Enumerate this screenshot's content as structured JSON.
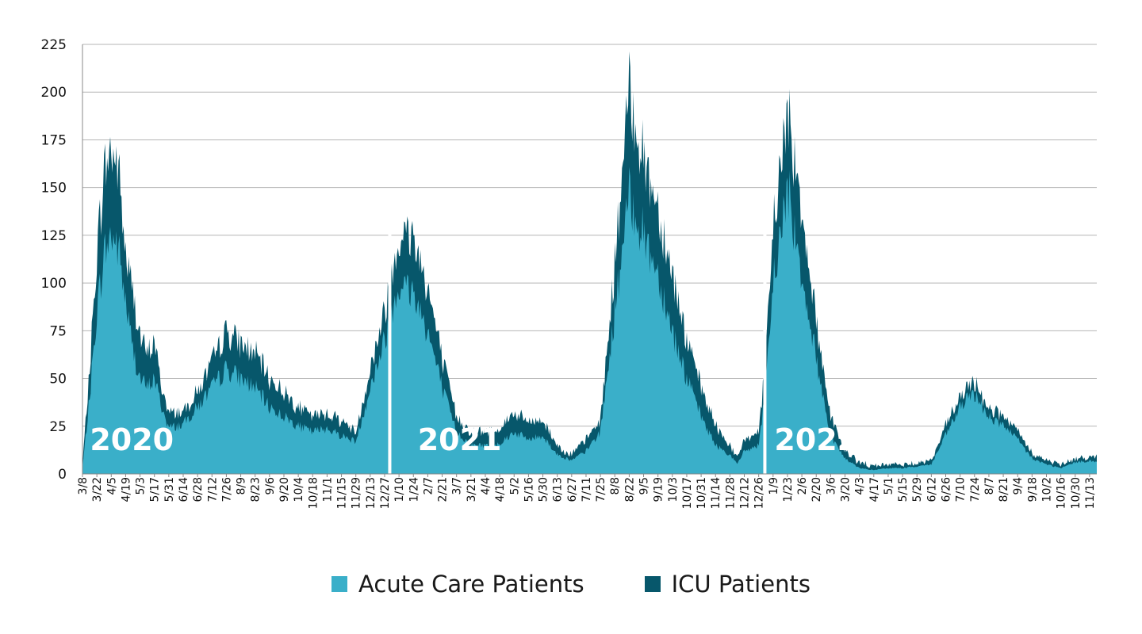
{
  "chart_data": {
    "type": "area",
    "stacked": true,
    "ylim": [
      0,
      225
    ],
    "yticks": [
      0,
      25,
      50,
      75,
      100,
      125,
      150,
      175,
      200,
      225
    ],
    "grid": true,
    "legend_position": "bottom-center",
    "colors": {
      "acute": "#3aafc9",
      "icu": "#07576b",
      "grid": "#b5b5b5",
      "axis": "#888888",
      "year_text": "#ffffff"
    },
    "x_tick_labels": [
      [
        "3/8",
        "3/22",
        "4/5",
        "4/19",
        "5/3",
        "5/17",
        "5/31",
        "6/14",
        "6/28",
        "7/12",
        "7/26",
        "8/9",
        "8/23",
        "9/6",
        "9/20",
        "10/4",
        "10/18",
        "11/1",
        "11/15",
        "11/29",
        "12/13",
        "12/27"
      ],
      [
        "1/10",
        "1/24",
        "2/7",
        "2/21",
        "3/7",
        "3/21",
        "4/4",
        "4/18",
        "5/2",
        "5/16",
        "5/30",
        "6/13",
        "6/27",
        "7/11",
        "7/25",
        "8/8",
        "8/22",
        "9/5",
        "9/19",
        "10/3",
        "10/17",
        "10/31",
        "11/14",
        "11/28",
        "12/12",
        "12/26"
      ],
      [
        "1/9",
        "1/23",
        "2/6",
        "2/20",
        "3/6",
        "3/20",
        "4/3",
        "4/17",
        "5/1",
        "5/15",
        "5/29",
        "6/12",
        "6/26",
        "7/10",
        "7/24",
        "8/7",
        "8/21",
        "9/4",
        "9/18",
        "10/2",
        "10/16",
        "10/30",
        "11/13"
      ]
    ],
    "year_labels": [
      "2020",
      "2021",
      "2022"
    ],
    "series": [
      {
        "name": "Acute Care Patients",
        "color": "#3aafc9"
      },
      {
        "name": "ICU Patients",
        "color": "#07576b"
      }
    ],
    "keypoints": [
      {
        "date": "2020-03-08",
        "acute": 3,
        "total": 5
      },
      {
        "date": "2020-03-15",
        "acute": 40,
        "total": 55
      },
      {
        "date": "2020-03-22",
        "acute": 85,
        "total": 115
      },
      {
        "date": "2020-03-29",
        "acute": 115,
        "total": 158
      },
      {
        "date": "2020-04-05",
        "acute": 125,
        "total": 170
      },
      {
        "date": "2020-04-12",
        "acute": 118,
        "total": 160
      },
      {
        "date": "2020-04-19",
        "acute": 90,
        "total": 115
      },
      {
        "date": "2020-04-26",
        "acute": 65,
        "total": 95
      },
      {
        "date": "2020-05-03",
        "acute": 50,
        "total": 72
      },
      {
        "date": "2020-05-10",
        "acute": 45,
        "total": 62
      },
      {
        "date": "2020-05-17",
        "acute": 50,
        "total": 70
      },
      {
        "date": "2020-05-24",
        "acute": 35,
        "total": 45
      },
      {
        "date": "2020-05-31",
        "acute": 24,
        "total": 32
      },
      {
        "date": "2020-06-14",
        "acute": 26,
        "total": 33
      },
      {
        "date": "2020-06-28",
        "acute": 35,
        "total": 43
      },
      {
        "date": "2020-07-12",
        "acute": 45,
        "total": 58
      },
      {
        "date": "2020-07-26",
        "acute": 55,
        "total": 75
      },
      {
        "date": "2020-08-09",
        "acute": 50,
        "total": 68
      },
      {
        "date": "2020-08-23",
        "acute": 45,
        "total": 63
      },
      {
        "date": "2020-09-06",
        "acute": 35,
        "total": 50
      },
      {
        "date": "2020-09-20",
        "acute": 30,
        "total": 43
      },
      {
        "date": "2020-10-04",
        "acute": 25,
        "total": 35
      },
      {
        "date": "2020-10-18",
        "acute": 22,
        "total": 30
      },
      {
        "date": "2020-11-01",
        "acute": 24,
        "total": 32
      },
      {
        "date": "2020-11-15",
        "acute": 20,
        "total": 28
      },
      {
        "date": "2020-11-29",
        "acute": 17,
        "total": 22
      },
      {
        "date": "2020-12-13",
        "acute": 45,
        "total": 55
      },
      {
        "date": "2020-12-27",
        "acute": 70,
        "total": 85
      },
      {
        "date": "2021-01-02",
        "acute": 85,
        "total": 105
      },
      {
        "date": "2021-01-10",
        "acute": 100,
        "total": 125
      },
      {
        "date": "2021-01-24",
        "acute": 95,
        "total": 125
      },
      {
        "date": "2021-02-07",
        "acute": 75,
        "total": 98
      },
      {
        "date": "2021-02-21",
        "acute": 45,
        "total": 60
      },
      {
        "date": "2021-03-07",
        "acute": 22,
        "total": 30
      },
      {
        "date": "2021-03-21",
        "acute": 15,
        "total": 22
      },
      {
        "date": "2021-04-04",
        "acute": 15,
        "total": 22
      },
      {
        "date": "2021-04-18",
        "acute": 16,
        "total": 24
      },
      {
        "date": "2021-05-02",
        "acute": 22,
        "total": 32
      },
      {
        "date": "2021-05-16",
        "acute": 18,
        "total": 27
      },
      {
        "date": "2021-05-30",
        "acute": 20,
        "total": 28
      },
      {
        "date": "2021-06-13",
        "acute": 10,
        "total": 15
      },
      {
        "date": "2021-06-27",
        "acute": 7,
        "total": 10
      },
      {
        "date": "2021-07-11",
        "acute": 12,
        "total": 18
      },
      {
        "date": "2021-07-25",
        "acute": 22,
        "total": 28
      },
      {
        "date": "2021-08-08",
        "acute": 85,
        "total": 110
      },
      {
        "date": "2021-08-22",
        "acute": 145,
        "total": 200
      },
      {
        "date": "2021-09-05",
        "acute": 125,
        "total": 165
      },
      {
        "date": "2021-09-19",
        "acute": 105,
        "total": 140
      },
      {
        "date": "2021-10-03",
        "acute": 75,
        "total": 105
      },
      {
        "date": "2021-10-17",
        "acute": 50,
        "total": 70
      },
      {
        "date": "2021-10-31",
        "acute": 30,
        "total": 45
      },
      {
        "date": "2021-11-14",
        "acute": 15,
        "total": 25
      },
      {
        "date": "2021-11-28",
        "acute": 10,
        "total": 15
      },
      {
        "date": "2021-12-05",
        "acute": 5,
        "total": 8
      },
      {
        "date": "2021-12-12",
        "acute": 12,
        "total": 18
      },
      {
        "date": "2021-12-26",
        "acute": 15,
        "total": 22
      },
      {
        "date": "2022-01-02",
        "acute": 45,
        "total": 60
      },
      {
        "date": "2022-01-09",
        "acute": 100,
        "total": 130
      },
      {
        "date": "2022-01-23",
        "acute": 150,
        "total": 190
      },
      {
        "date": "2022-02-06",
        "acute": 105,
        "total": 140
      },
      {
        "date": "2022-02-20",
        "acute": 60,
        "total": 80
      },
      {
        "date": "2022-03-06",
        "acute": 20,
        "total": 30
      },
      {
        "date": "2022-03-20",
        "acute": 8,
        "total": 12
      },
      {
        "date": "2022-04-03",
        "acute": 3,
        "total": 6
      },
      {
        "date": "2022-04-17",
        "acute": 2,
        "total": 4
      },
      {
        "date": "2022-05-01",
        "acute": 3,
        "total": 5
      },
      {
        "date": "2022-05-15",
        "acute": 3,
        "total": 5
      },
      {
        "date": "2022-05-29",
        "acute": 4,
        "total": 6
      },
      {
        "date": "2022-06-12",
        "acute": 5,
        "total": 7
      },
      {
        "date": "2022-06-26",
        "acute": 20,
        "total": 25
      },
      {
        "date": "2022-07-10",
        "acute": 35,
        "total": 40
      },
      {
        "date": "2022-07-24",
        "acute": 42,
        "total": 48
      },
      {
        "date": "2022-08-07",
        "acute": 30,
        "total": 35
      },
      {
        "date": "2022-08-21",
        "acute": 25,
        "total": 30
      },
      {
        "date": "2022-09-04",
        "acute": 18,
        "total": 22
      },
      {
        "date": "2022-09-18",
        "acute": 8,
        "total": 11
      },
      {
        "date": "2022-10-02",
        "acute": 5,
        "total": 7
      },
      {
        "date": "2022-10-16",
        "acute": 3,
        "total": 5
      },
      {
        "date": "2022-10-30",
        "acute": 6,
        "total": 8
      },
      {
        "date": "2022-11-13",
        "acute": 7,
        "total": 9
      },
      {
        "date": "2022-11-20",
        "acute": 6,
        "total": 9
      }
    ]
  }
}
